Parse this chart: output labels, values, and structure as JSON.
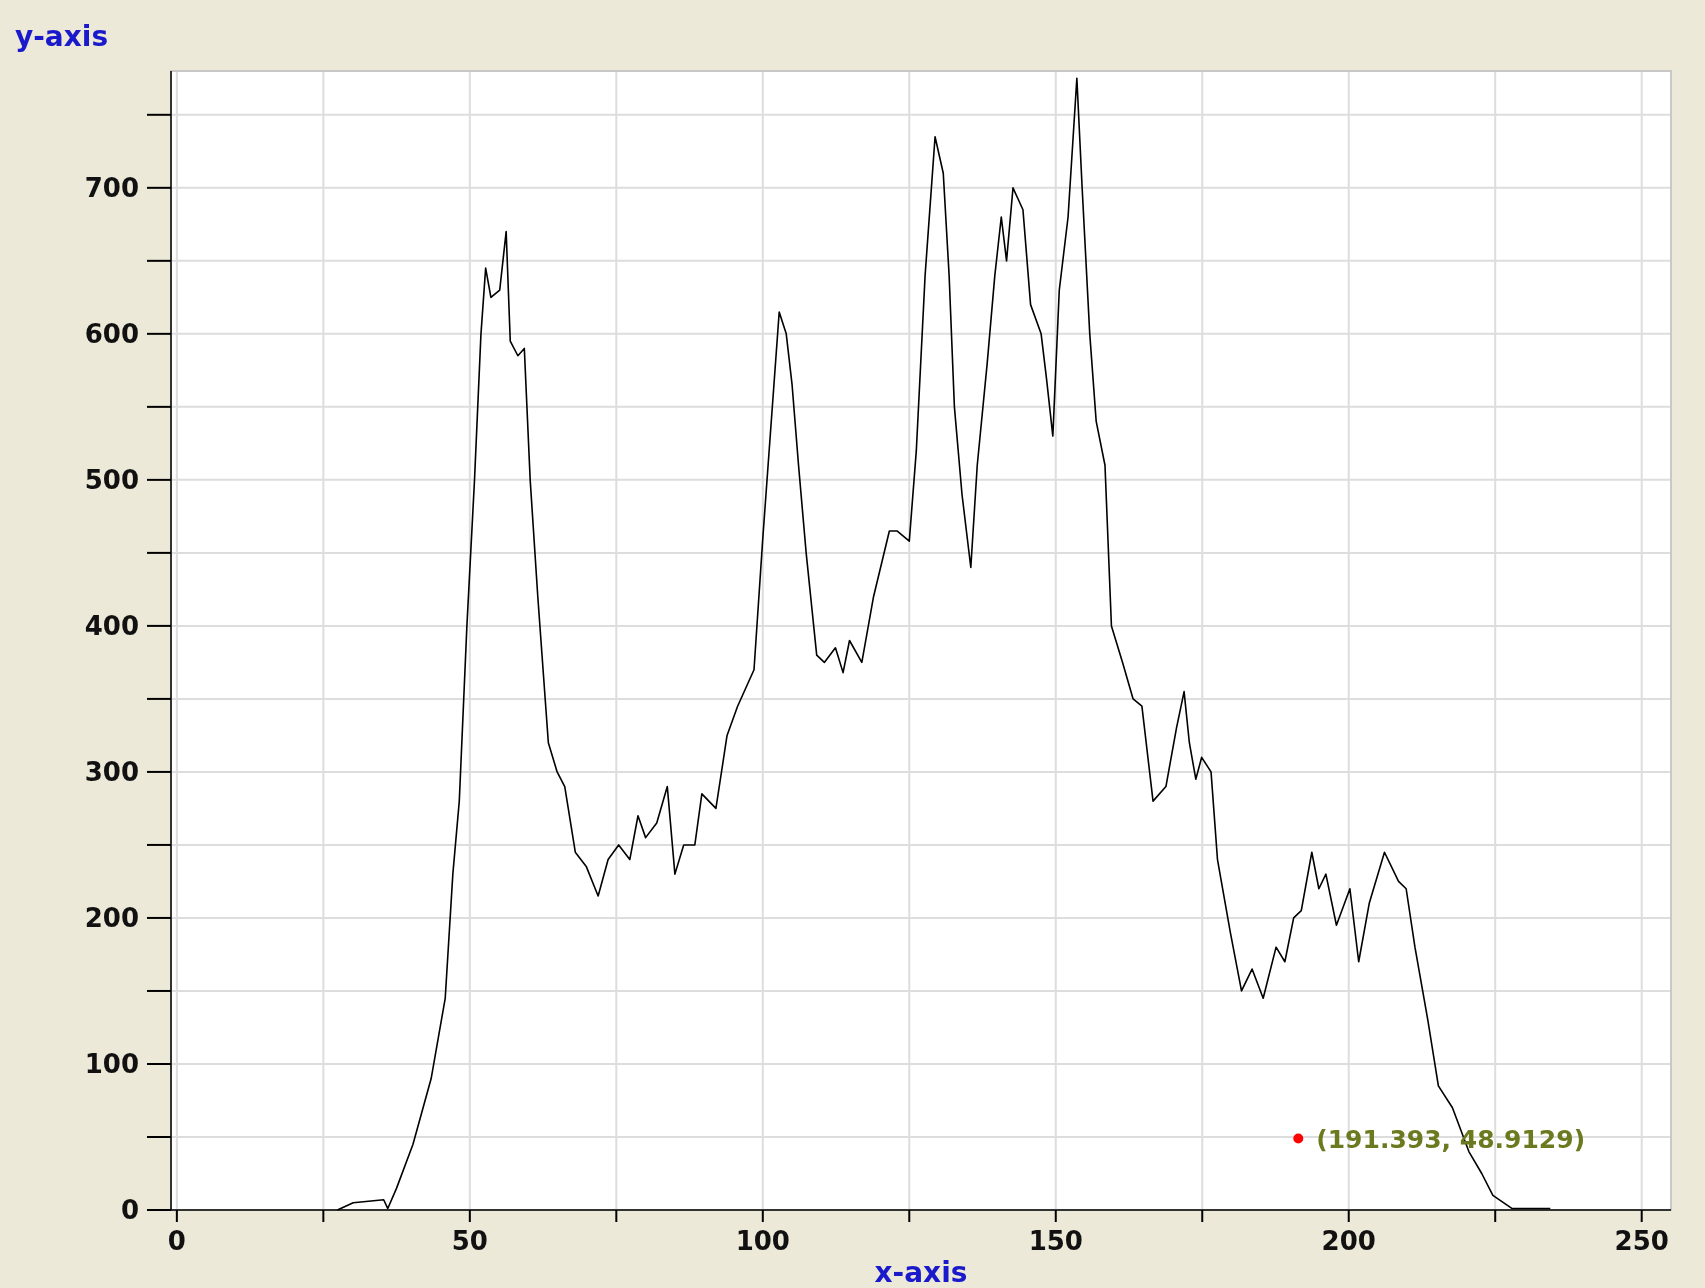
{
  "chart_data": {
    "type": "line",
    "xlabel": "x-axis",
    "ylabel": "y-axis",
    "xlim": [
      -1,
      255
    ],
    "ylim": [
      0,
      780
    ],
    "xticks": [
      0,
      {
        "value": 25,
        "label": null
      },
      50,
      {
        "value": 75,
        "label": null
      },
      100,
      {
        "value": 125,
        "label": null
      },
      150,
      {
        "value": 175,
        "label": null
      },
      200,
      {
        "value": 225,
        "label": null
      },
      250
    ],
    "yticks": [
      0,
      {
        "value": 50,
        "label": null
      },
      100,
      {
        "value": 150,
        "label": null
      },
      200,
      {
        "value": 250,
        "label": null
      },
      300,
      {
        "value": 350,
        "label": null
      },
      400,
      {
        "value": 450,
        "label": null
      },
      500,
      {
        "value": 550,
        "label": null
      },
      600,
      {
        "value": 650,
        "label": null
      },
      700,
      {
        "value": 750,
        "label": null
      }
    ],
    "grid": true,
    "marker": "none",
    "line_style": "solid",
    "series": [
      {
        "color": "#000000",
        "x": [
          27.4,
          30.1,
          35.3,
          36,
          37.5,
          40.3,
          43.4,
          45.8,
          47.1,
          48.2,
          49.5,
          50.8,
          51.9,
          52.7,
          53.6,
          55.1,
          56.2,
          56.9,
          58.2,
          59.3,
          60.3,
          61.6,
          63.4,
          64.9,
          66.2,
          68,
          69.9,
          71.9,
          73.6,
          75.4,
          77.3,
          78.7,
          80,
          81.9,
          83.7,
          85,
          86.5,
          88.4,
          89.6,
          92,
          93.9,
          95.7,
          98.5,
          100,
          102.8,
          104,
          105,
          106.1,
          107.4,
          109.2,
          110.5,
          112.4,
          113.7,
          114.8,
          116.9,
          118.9,
          121.6,
          122.9,
          125,
          126.2,
          127.7,
          129.4,
          130.8,
          131.8,
          132.7,
          134,
          135.5,
          136.6,
          138.3,
          139.6,
          140.7,
          141.6,
          142.7,
          144.4,
          145.7,
          147.5,
          148.4,
          149.5,
          150.6,
          152.1,
          153.6,
          154.5,
          155.8,
          156.9,
          158.4,
          159.5,
          161.4,
          163.2,
          164.7,
          166.6,
          168.8,
          170.6,
          171.9,
          172.8,
          173.9,
          174.9,
          176.5,
          177.6,
          179.8,
          181.7,
          183.5,
          185.4,
          187.6,
          189.1,
          190.6,
          191.9,
          193.7,
          194.9,
          196.1,
          197.9,
          200.2,
          201.7,
          203.5,
          206.1,
          208.5,
          209.8,
          211.3,
          213.5,
          215.3,
          217.7,
          220.5,
          222.7,
          224.6,
          227.9,
          234.4
        ],
        "values": [
          0,
          5,
          7,
          1,
          15,
          45,
          90,
          145,
          230,
          280,
          400,
          500,
          600,
          645,
          625,
          630,
          670,
          595,
          585,
          590,
          500,
          420,
          320,
          300,
          290,
          245,
          235,
          215,
          240,
          250,
          240,
          270,
          255,
          265,
          290,
          230,
          250,
          250,
          285,
          275,
          325,
          345,
          370,
          460,
          615,
          600,
          565,
          510,
          450,
          380,
          375,
          385,
          368,
          390,
          375,
          420,
          465,
          465,
          458,
          520,
          640,
          735,
          710,
          640,
          550,
          490,
          440,
          510,
          580,
          640,
          680,
          650,
          700,
          685,
          620,
          600,
          570,
          530,
          630,
          680,
          775,
          700,
          600,
          540,
          510,
          400,
          375,
          350,
          345,
          280,
          290,
          330,
          355,
          320,
          295,
          310,
          300,
          240,
          190,
          150,
          165,
          145,
          180,
          170,
          200,
          205,
          245,
          220,
          230,
          195,
          220,
          170,
          210,
          245,
          225,
          220,
          180,
          130,
          85,
          70,
          40,
          25,
          10,
          1,
          1
        ]
      }
    ],
    "annotations": [
      {
        "text": "(191.393, 48.9129)",
        "x": 191.393,
        "y": 48.9129
      }
    ]
  }
}
